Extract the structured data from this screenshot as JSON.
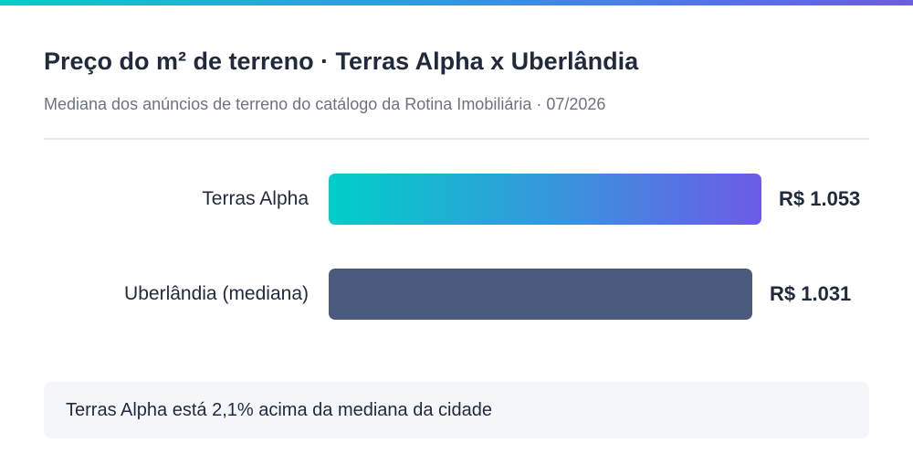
{
  "header": {
    "title": "Preço do m² de terreno · Terras Alpha x Uberlândia",
    "subtitle": "Mediana dos anúncios de terreno do catálogo da Rotina Imobiliária · 07/2026"
  },
  "colors": {
    "accent_start": "#00cfc8",
    "accent_end": "#6c5be6",
    "baseline_bar": "#4a5a7c"
  },
  "chart_data": {
    "type": "bar",
    "orientation": "horizontal",
    "categories": [
      "Terras Alpha",
      "Uberlândia (mediana)"
    ],
    "values": [
      1053,
      1031
    ],
    "value_labels": [
      "R$ 1.053",
      "R$ 1.031"
    ],
    "title": "Preço do m² de terreno · Terras Alpha x Uberlândia",
    "subtitle": "Mediana dos anúncios de terreno do catálogo da Rotina Imobiliária · 07/2026",
    "grid": false,
    "legend": "none"
  },
  "note": {
    "text": "Terras Alpha está 2,1% acima da mediana da cidade"
  }
}
